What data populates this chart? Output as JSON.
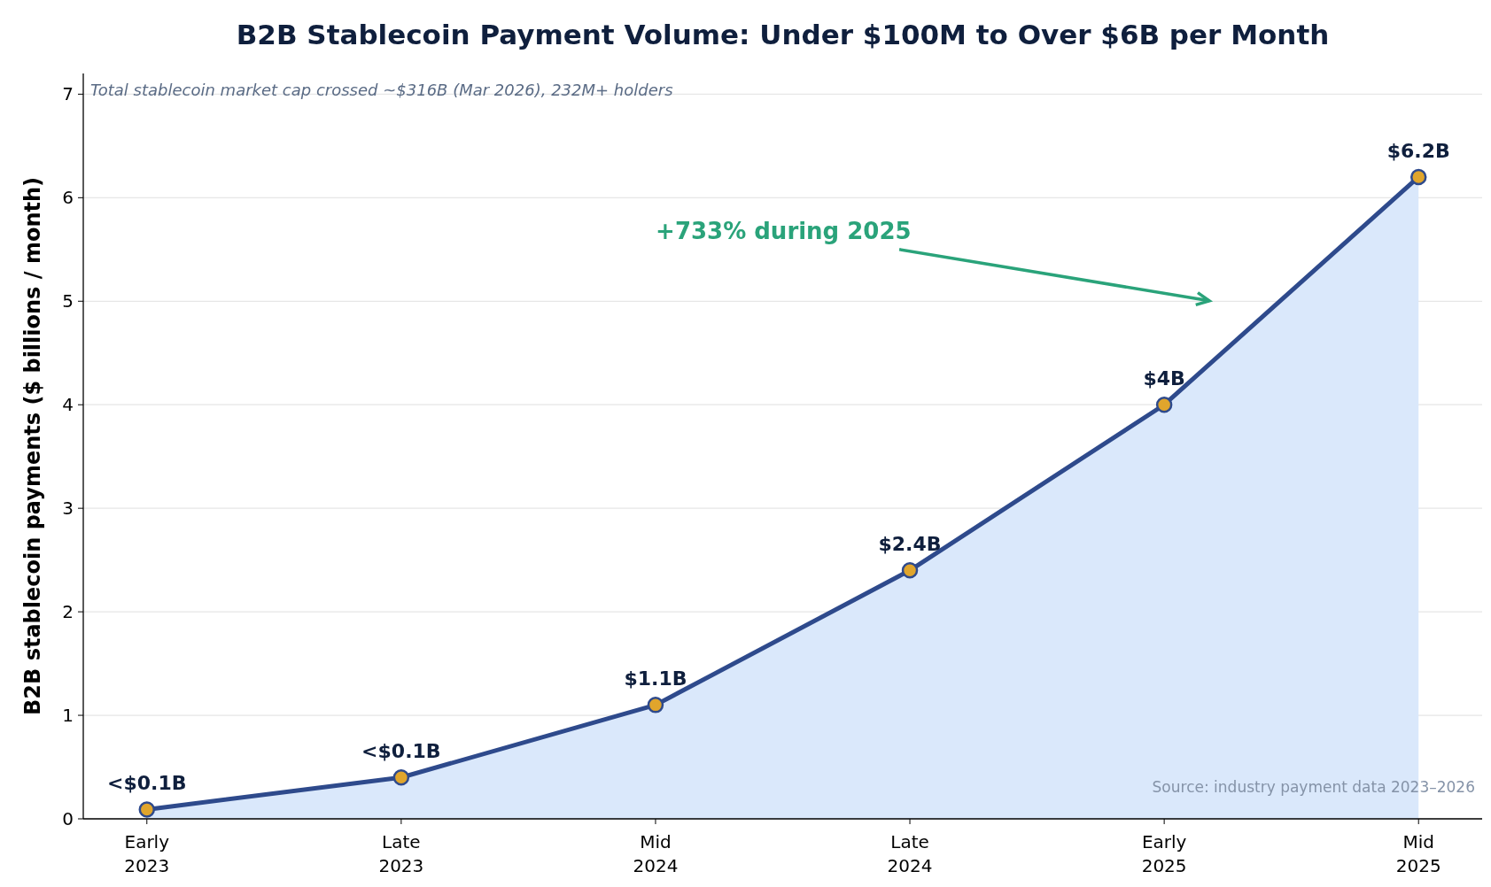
{
  "chart_data": {
    "type": "area",
    "title": "B2B Stablecoin Payment Volume: Under $100M to Over $6B per Month",
    "subtitle": "Total stablecoin market cap crossed ~$316B (Mar 2026), 232M+ holders",
    "ylabel": "B2B stablecoin payments ($ billions / month)",
    "categories": [
      "Early 2023",
      "Late 2023",
      "Mid 2024",
      "Late 2024",
      "Early 2025",
      "Mid 2025"
    ],
    "series": [
      {
        "color": "#2e4a8c",
        "values": [
          0.09,
          0.4,
          1.1,
          2.4,
          4.0,
          6.2
        ],
        "value_labels": [
          "<$0.1B",
          "<$0.1B",
          "$1.1B",
          "$2.4B",
          "$4B",
          "$6.2B"
        ]
      }
    ],
    "ylim": [
      0,
      7.2
    ],
    "yticks": [
      0,
      1,
      2,
      3,
      4,
      5,
      6,
      7
    ],
    "grid": "y",
    "marker": "circle",
    "annotations": [
      "+733% during 2025",
      "Source: industry payment data 2023–2026"
    ]
  }
}
